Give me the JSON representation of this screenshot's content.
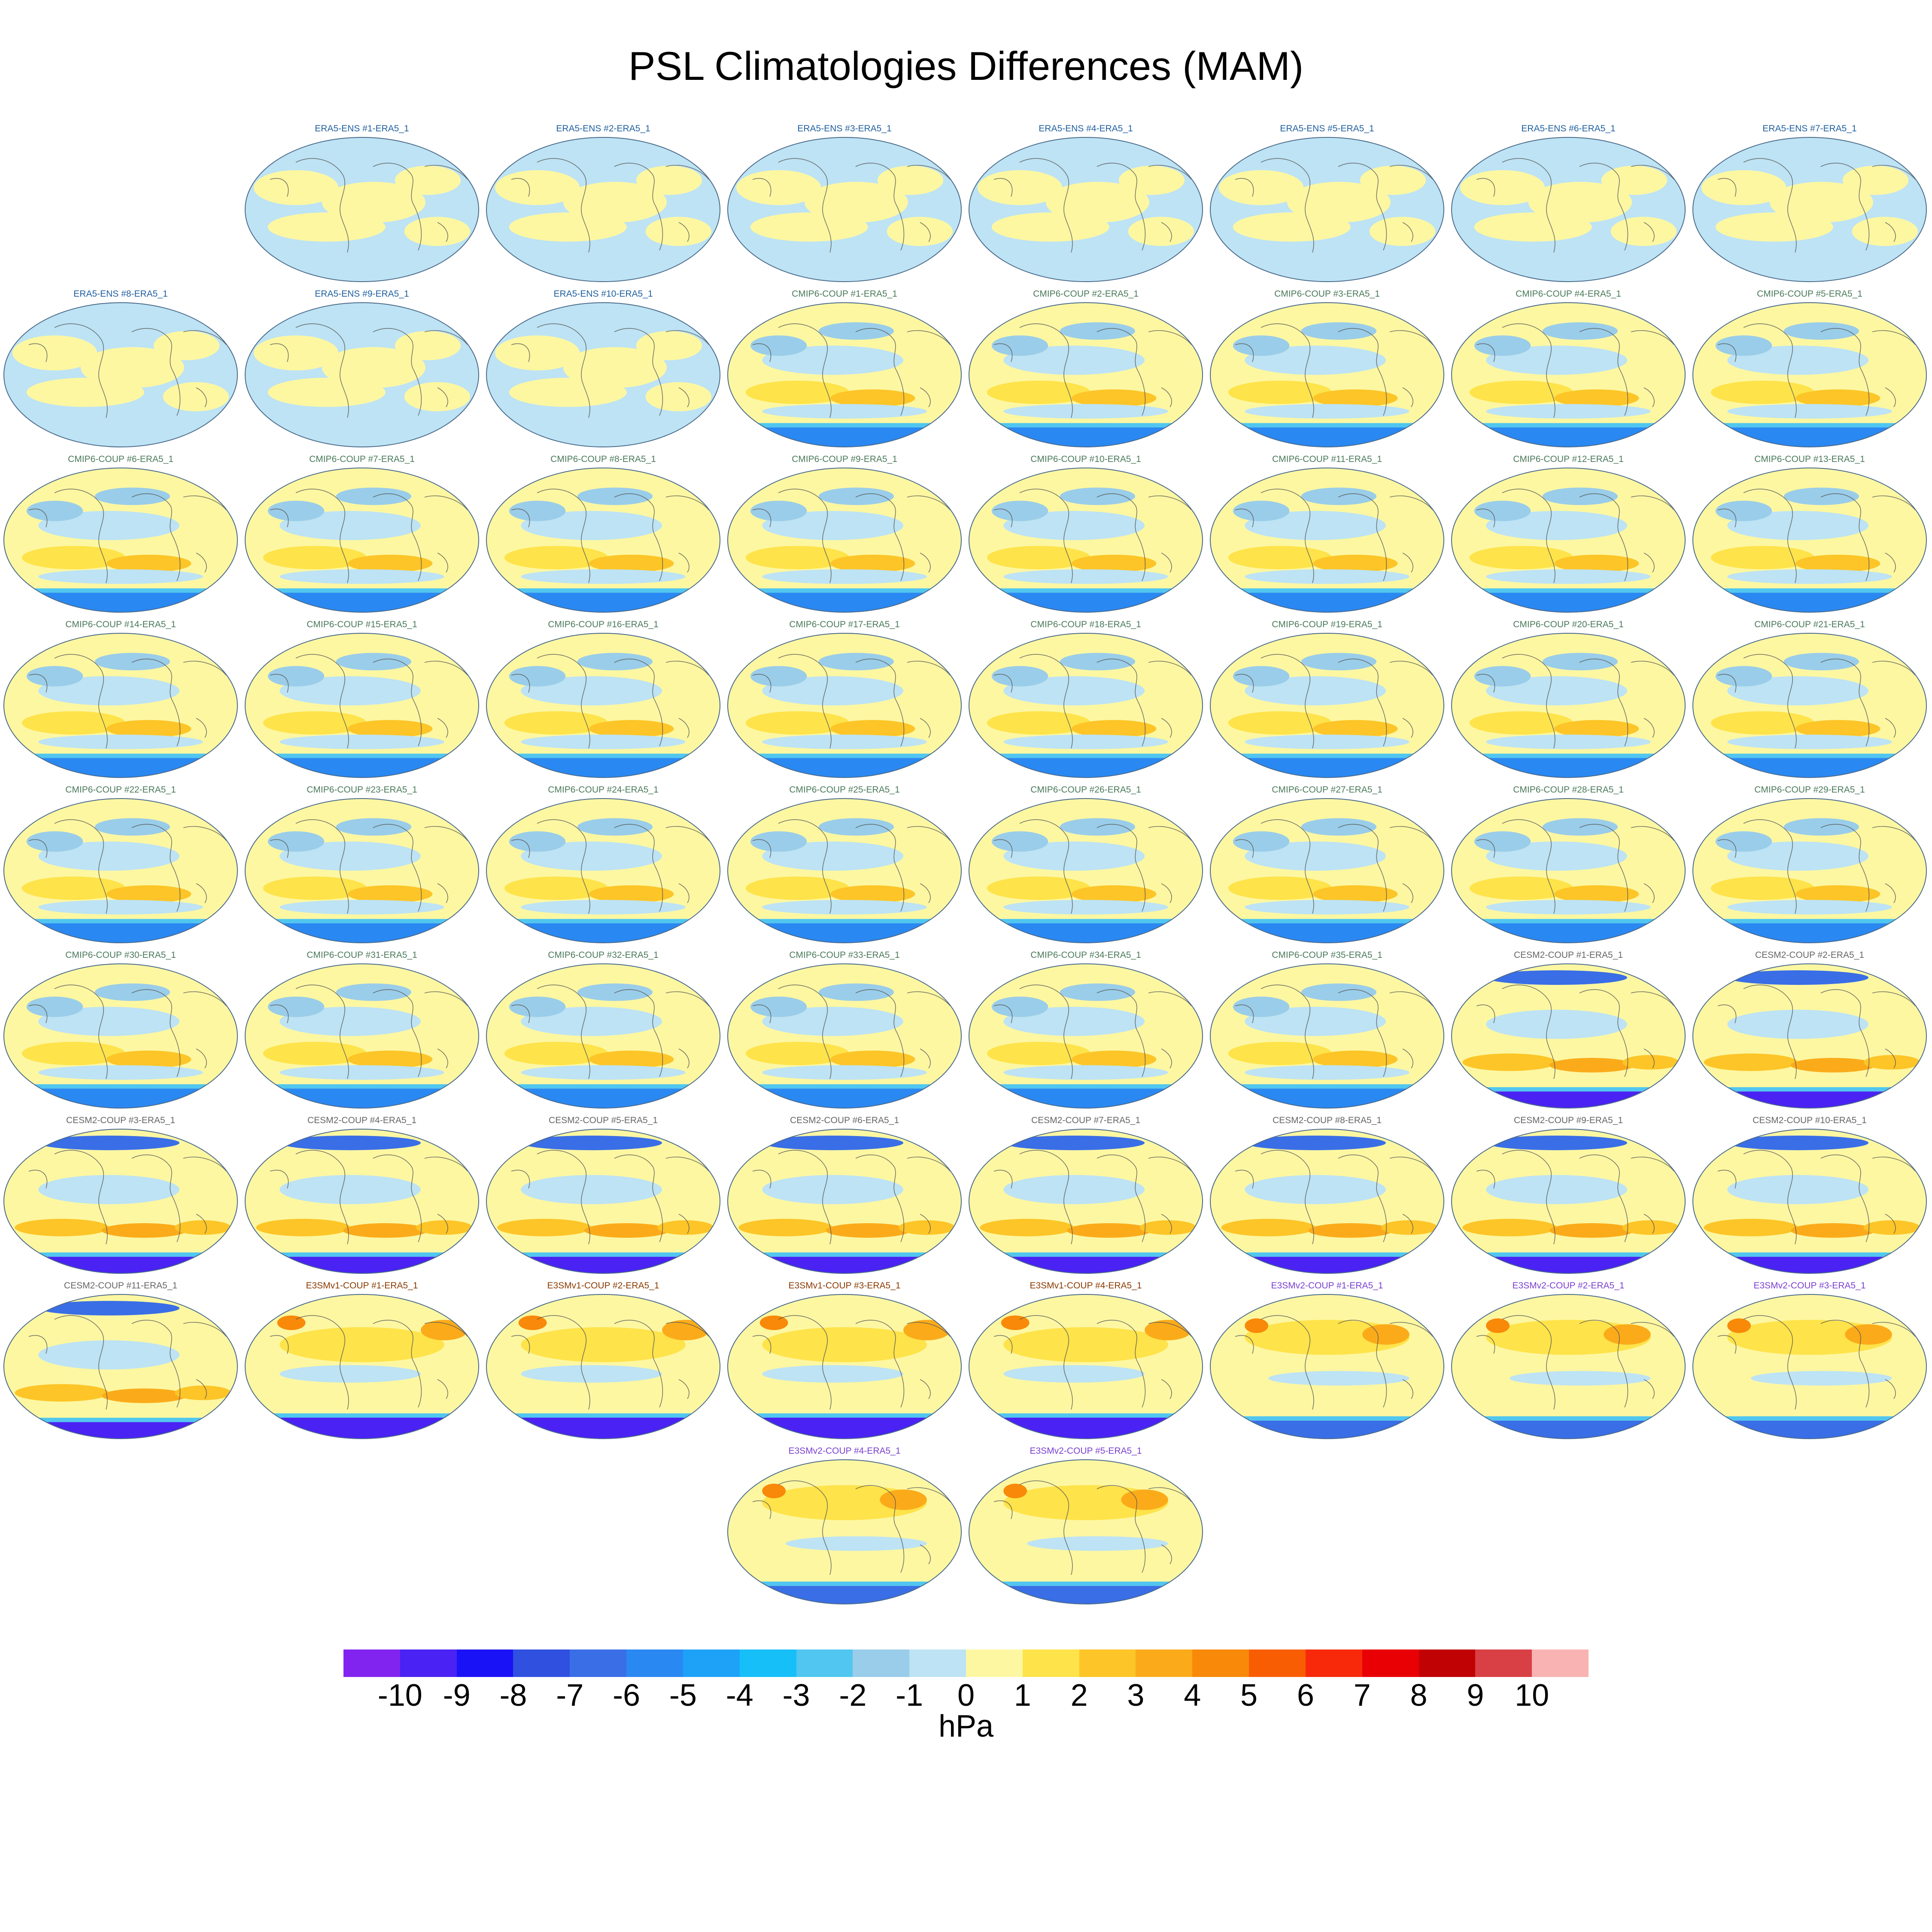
{
  "figure": {
    "title": "PSL Climatologies Differences (MAM)",
    "units": "hPa"
  },
  "colors": {
    "era5": "#1f5f9f",
    "cmip6": "#4a7a5a",
    "cesm2": "#666666",
    "e3smv1": "#8a3a00",
    "e3smv2": "#7a40d0"
  },
  "colorbar": {
    "colors": [
      "#8224f0",
      "#4a22f3",
      "#1a12f6",
      "#3050e0",
      "#3a6ee6",
      "#2a88f2",
      "#1ea2f8",
      "#17bff8",
      "#50c6f0",
      "#9acde9",
      "#bde3f4",
      "#fdf7a2",
      "#fee34a",
      "#fdc527",
      "#fbab1a",
      "#f98909",
      "#f85d04",
      "#f8290b",
      "#e90005",
      "#c10204",
      "#d94045",
      "#f9b3b3"
    ],
    "ticks": [
      "-10",
      "-9",
      "-8",
      "-7",
      "-6",
      "-5",
      "-4",
      "-3",
      "-2",
      "-1",
      "0",
      "1",
      "2",
      "3",
      "4",
      "5",
      "6",
      "7",
      "8",
      "9",
      "10"
    ]
  },
  "panels": [
    {
      "group": "era5",
      "label": "ERA5-ENS    #1-ERA5_1"
    },
    {
      "group": "era5",
      "label": "ERA5-ENS    #2-ERA5_1"
    },
    {
      "group": "era5",
      "label": "ERA5-ENS    #3-ERA5_1"
    },
    {
      "group": "era5",
      "label": "ERA5-ENS    #4-ERA5_1"
    },
    {
      "group": "era5",
      "label": "ERA5-ENS    #5-ERA5_1"
    },
    {
      "group": "era5",
      "label": "ERA5-ENS    #6-ERA5_1"
    },
    {
      "group": "era5",
      "label": "ERA5-ENS    #7-ERA5_1"
    },
    {
      "group": "era5",
      "label": "ERA5-ENS    #8-ERA5_1"
    },
    {
      "group": "era5",
      "label": "ERA5-ENS    #9-ERA5_1"
    },
    {
      "group": "era5",
      "label": "ERA5-ENS    #10-ERA5_1"
    },
    {
      "group": "cmip6",
      "label": "CMIP6-COUP  #1-ERA5_1"
    },
    {
      "group": "cmip6",
      "label": "CMIP6-COUP  #2-ERA5_1"
    },
    {
      "group": "cmip6",
      "label": "CMIP6-COUP  #3-ERA5_1"
    },
    {
      "group": "cmip6",
      "label": "CMIP6-COUP  #4-ERA5_1"
    },
    {
      "group": "cmip6",
      "label": "CMIP6-COUP  #5-ERA5_1"
    },
    {
      "group": "cmip6",
      "label": "CMIP6-COUP  #6-ERA5_1"
    },
    {
      "group": "cmip6",
      "label": "CMIP6-COUP  #7-ERA5_1"
    },
    {
      "group": "cmip6",
      "label": "CMIP6-COUP  #8-ERA5_1"
    },
    {
      "group": "cmip6",
      "label": "CMIP6-COUP  #9-ERA5_1"
    },
    {
      "group": "cmip6",
      "label": "CMIP6-COUP  #10-ERA5_1"
    },
    {
      "group": "cmip6",
      "label": "CMIP6-COUP  #11-ERA5_1"
    },
    {
      "group": "cmip6",
      "label": "CMIP6-COUP  #12-ERA5_1"
    },
    {
      "group": "cmip6",
      "label": "CMIP6-COUP  #13-ERA5_1"
    },
    {
      "group": "cmip6",
      "label": "CMIP6-COUP  #14-ERA5_1"
    },
    {
      "group": "cmip6",
      "label": "CMIP6-COUP  #15-ERA5_1"
    },
    {
      "group": "cmip6",
      "label": "CMIP6-COUP  #16-ERA5_1"
    },
    {
      "group": "cmip6",
      "label": "CMIP6-COUP  #17-ERA5_1"
    },
    {
      "group": "cmip6",
      "label": "CMIP6-COUP  #18-ERA5_1"
    },
    {
      "group": "cmip6",
      "label": "CMIP6-COUP  #19-ERA5_1"
    },
    {
      "group": "cmip6",
      "label": "CMIP6-COUP  #20-ERA5_1"
    },
    {
      "group": "cmip6",
      "label": "CMIP6-COUP  #21-ERA5_1"
    },
    {
      "group": "cmip6",
      "label": "CMIP6-COUP  #22-ERA5_1"
    },
    {
      "group": "cmip6",
      "label": "CMIP6-COUP  #23-ERA5_1"
    },
    {
      "group": "cmip6",
      "label": "CMIP6-COUP  #24-ERA5_1"
    },
    {
      "group": "cmip6",
      "label": "CMIP6-COUP  #25-ERA5_1"
    },
    {
      "group": "cmip6",
      "label": "CMIP6-COUP  #26-ERA5_1"
    },
    {
      "group": "cmip6",
      "label": "CMIP6-COUP  #27-ERA5_1"
    },
    {
      "group": "cmip6",
      "label": "CMIP6-COUP  #28-ERA5_1"
    },
    {
      "group": "cmip6",
      "label": "CMIP6-COUP  #29-ERA5_1"
    },
    {
      "group": "cmip6",
      "label": "CMIP6-COUP  #30-ERA5_1"
    },
    {
      "group": "cmip6",
      "label": "CMIP6-COUP  #31-ERA5_1"
    },
    {
      "group": "cmip6",
      "label": "CMIP6-COUP  #32-ERA5_1"
    },
    {
      "group": "cmip6",
      "label": "CMIP6-COUP  #33-ERA5_1"
    },
    {
      "group": "cmip6",
      "label": "CMIP6-COUP  #34-ERA5_1"
    },
    {
      "group": "cmip6",
      "label": "CMIP6-COUP  #35-ERA5_1"
    },
    {
      "group": "cesm2",
      "label": "CESM2-COUP  #1-ERA5_1"
    },
    {
      "group": "cesm2",
      "label": "CESM2-COUP  #2-ERA5_1"
    },
    {
      "group": "cesm2",
      "label": "CESM2-COUP  #3-ERA5_1"
    },
    {
      "group": "cesm2",
      "label": "CESM2-COUP  #4-ERA5_1"
    },
    {
      "group": "cesm2",
      "label": "CESM2-COUP  #5-ERA5_1"
    },
    {
      "group": "cesm2",
      "label": "CESM2-COUP  #6-ERA5_1"
    },
    {
      "group": "cesm2",
      "label": "CESM2-COUP  #7-ERA5_1"
    },
    {
      "group": "cesm2",
      "label": "CESM2-COUP  #8-ERA5_1"
    },
    {
      "group": "cesm2",
      "label": "CESM2-COUP  #9-ERA5_1"
    },
    {
      "group": "cesm2",
      "label": "CESM2-COUP  #10-ERA5_1"
    },
    {
      "group": "cesm2",
      "label": "CESM2-COUP  #11-ERA5_1"
    },
    {
      "group": "e3smv1",
      "label": "E3SMv1-COUP #1-ERA5_1"
    },
    {
      "group": "e3smv1",
      "label": "E3SMv1-COUP #2-ERA5_1"
    },
    {
      "group": "e3smv1",
      "label": "E3SMv1-COUP #3-ERA5_1"
    },
    {
      "group": "e3smv1",
      "label": "E3SMv1-COUP #4-ERA5_1"
    },
    {
      "group": "e3smv2",
      "label": "E3SMv2-COUP #1-ERA5_1"
    },
    {
      "group": "e3smv2",
      "label": "E3SMv2-COUP #2-ERA5_1"
    },
    {
      "group": "e3smv2",
      "label": "E3SMv2-COUP #3-ERA5_1"
    },
    {
      "group": "e3smv2",
      "label": "E3SMv2-COUP #4-ERA5_1"
    },
    {
      "group": "e3smv2",
      "label": "E3SMv2-COUP #5-ERA5_1"
    }
  ]
}
